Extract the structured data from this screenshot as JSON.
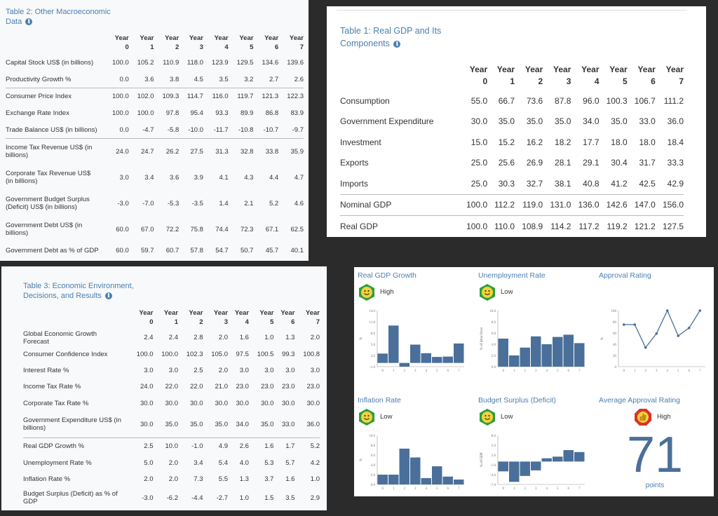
{
  "table2": {
    "title_line1": "Table 2: Other Macroeconomic",
    "title_line2": "Data",
    "info_icon": "ℹ",
    "year_word": "Year",
    "years": [
      "0",
      "1",
      "2",
      "3",
      "4",
      "5",
      "6",
      "7"
    ],
    "rows": [
      {
        "label": "Capital Stock US$ (in billions)",
        "values": [
          "100.0",
          "105.2",
          "110.9",
          "118.0",
          "123.9",
          "129.5",
          "134.6",
          "139.6"
        ]
      },
      {
        "label": "Productivity Growth %",
        "values": [
          "0.0",
          "3.6",
          "3.8",
          "4.5",
          "3.5",
          "3.2",
          "2.7",
          "2.6"
        ]
      },
      {
        "label": "Consumer Price Index",
        "values": [
          "100.0",
          "102.0",
          "109.3",
          "114.7",
          "116.0",
          "119.7",
          "121.3",
          "122.3"
        ]
      },
      {
        "label": "Exchange Rate Index",
        "values": [
          "100.0",
          "100.0",
          "97.8",
          "95.4",
          "93.3",
          "89.9",
          "86.8",
          "83.9"
        ]
      },
      {
        "label": "Trade Balance US$ (in billions)",
        "values": [
          "0.0",
          "-4.7",
          "-5.8",
          "-10.0",
          "-11.7",
          "-10.8",
          "-10.7",
          "-9.7"
        ]
      },
      {
        "label": "Income Tax Revenue US$ (in billions)",
        "values": [
          "24.0",
          "24.7",
          "26.2",
          "27.5",
          "31.3",
          "32.8",
          "33.8",
          "35.9"
        ]
      },
      {
        "label": "Corporate Tax Revenue US$ (in billions)",
        "values": [
          "3.0",
          "3.4",
          "3.6",
          "3.9",
          "4.1",
          "4.3",
          "4.4",
          "4.7"
        ]
      },
      {
        "label": "Government Budget Surplus (Deficit) US$ (in billions)",
        "values": [
          "-3.0",
          "-7.0",
          "-5.3",
          "-3.5",
          "1.4",
          "2.1",
          "5.2",
          "4.6"
        ]
      },
      {
        "label": "Government Debt US$ (in billions)",
        "values": [
          "60.0",
          "67.0",
          "72.2",
          "75.8",
          "74.4",
          "72.3",
          "67.1",
          "62.5"
        ]
      },
      {
        "label": "Government Debt as % of GDP",
        "values": [
          "60.0",
          "59.7",
          "60.7",
          "57.8",
          "54.7",
          "50.7",
          "45.7",
          "40.1"
        ]
      }
    ]
  },
  "table1": {
    "title_line1": "Table 1: Real GDP and Its",
    "title_line2": "Components",
    "info_icon": "ℹ",
    "year_word": "Year",
    "years": [
      "0",
      "1",
      "2",
      "3",
      "4",
      "5",
      "6",
      "7"
    ],
    "rows": [
      {
        "label": "Consumption",
        "values": [
          "55.0",
          "66.7",
          "73.6",
          "87.8",
          "96.0",
          "100.3",
          "106.7",
          "111.2"
        ]
      },
      {
        "label": "Government Expenditure",
        "values": [
          "30.0",
          "35.0",
          "35.0",
          "35.0",
          "34.0",
          "35.0",
          "33.0",
          "36.0"
        ]
      },
      {
        "label": "Investment",
        "values": [
          "15.0",
          "15.2",
          "16.2",
          "18.2",
          "17.7",
          "18.0",
          "18.0",
          "18.4"
        ]
      },
      {
        "label": "Exports",
        "values": [
          "25.0",
          "25.6",
          "26.9",
          "28.1",
          "29.1",
          "30.4",
          "31.7",
          "33.3"
        ]
      },
      {
        "label": "Imports",
        "values": [
          "25.0",
          "30.3",
          "32.7",
          "38.1",
          "40.8",
          "41.2",
          "42.5",
          "42.9"
        ]
      },
      {
        "label": "Nominal GDP",
        "values": [
          "100.0",
          "112.2",
          "119.0",
          "131.0",
          "136.0",
          "142.6",
          "147.0",
          "156.0"
        ]
      },
      {
        "label": "Real GDP",
        "values": [
          "100.0",
          "110.0",
          "108.9",
          "114.2",
          "117.2",
          "119.2",
          "121.2",
          "127.5"
        ]
      }
    ]
  },
  "table3": {
    "title_line1": "Table 3: Economic Environment,",
    "title_line2": "Decisions, and Results",
    "info_icon": "ℹ",
    "year_word": "Year",
    "years": [
      "0",
      "1",
      "2",
      "3",
      "4",
      "5",
      "6",
      "7"
    ],
    "rows": [
      {
        "label": "Global Economic Growth Forecast",
        "values": [
          "2.4",
          "2.4",
          "2.8",
          "2.0",
          "1.6",
          "1.0",
          "1.3",
          "2.0"
        ]
      },
      {
        "label": "Consumer Confidence Index",
        "values": [
          "100.0",
          "100.0",
          "102.3",
          "105.0",
          "97.5",
          "100.5",
          "99.3",
          "100.8"
        ]
      },
      {
        "label": "Interest Rate %",
        "values": [
          "3.0",
          "3.0",
          "2.5",
          "2.0",
          "3.0",
          "3.0",
          "3.0",
          "3.0"
        ]
      },
      {
        "label": "Income Tax Rate %",
        "values": [
          "24.0",
          "22.0",
          "22.0",
          "21.0",
          "23.0",
          "23.0",
          "23.0",
          "23.0"
        ]
      },
      {
        "label": "Corporate Tax Rate %",
        "values": [
          "30.0",
          "30.0",
          "30.0",
          "30.0",
          "30.0",
          "30.0",
          "30.0",
          "30.0"
        ]
      },
      {
        "label": "Government Expenditure US$ (in billions)",
        "values": [
          "30.0",
          "35.0",
          "35.0",
          "35.0",
          "34.0",
          "35.0",
          "33.0",
          "36.0"
        ]
      },
      {
        "label": "Real GDP Growth %",
        "values": [
          "2.5",
          "10.0",
          "-1.0",
          "4.9",
          "2.6",
          "1.6",
          "1.7",
          "5.2"
        ]
      },
      {
        "label": "Unemployment Rate %",
        "values": [
          "5.0",
          "2.0",
          "3.4",
          "5.4",
          "4.0",
          "5.3",
          "5.7",
          "4.2"
        ]
      },
      {
        "label": "Inflation Rate %",
        "values": [
          "2.0",
          "2.0",
          "7.3",
          "5.5",
          "1.3",
          "3.7",
          "1.6",
          "1.0"
        ]
      },
      {
        "label": "Budget Surplus (Deficit) as % of GDP",
        "values": [
          "-3.0",
          "-6.2",
          "-4.4",
          "-2.7",
          "1.0",
          "1.5",
          "3.5",
          "2.9"
        ]
      }
    ]
  },
  "dashboard": {
    "colors": {
      "bar": "#4a6f9a",
      "green": "#2e9e3e",
      "red": "#d9332b",
      "smiley": "#f5d23a",
      "title": "#4a7fb0",
      "bignum": "#4a6f9a"
    },
    "real_gdp": {
      "title": "Real GDP Growth",
      "status": "High",
      "icon": "smiley-icon",
      "ylabel": "%"
    },
    "unemployment": {
      "title": "Unemployment Rate",
      "status": "Low",
      "icon": "smiley-icon",
      "ylabel": "% of labor force"
    },
    "approval": {
      "title": "Approval Rating",
      "ylabel": "%"
    },
    "inflation": {
      "title": "Inflation Rate",
      "status": "Low",
      "icon": "smiley-icon",
      "ylabel": "%"
    },
    "budget": {
      "title": "Budget Surplus (Deficit)",
      "status": "Low",
      "icon": "smiley-icon",
      "ylabel": "% of GDP"
    },
    "avg_approval": {
      "title": "Average Approval Rating",
      "status": "High",
      "icon": "thumbs-up-icon",
      "value": "71",
      "unit": "points"
    }
  },
  "chart_data": [
    {
      "type": "bar",
      "x": [
        0,
        1,
        2,
        3,
        4,
        5,
        6,
        7
      ],
      "values": [
        2.5,
        10.0,
        -1.0,
        4.9,
        2.6,
        1.6,
        1.7,
        5.2
      ],
      "ylabel": "%",
      "ylim": [
        -1,
        14
      ],
      "yticks": [
        "-1.0",
        "2.0",
        "5.0",
        "8.0",
        "11.0",
        "14.0"
      ],
      "ytick_vals": [
        -1,
        2,
        5,
        8,
        11,
        14
      ]
    },
    {
      "type": "bar",
      "x": [
        0,
        1,
        2,
        3,
        4,
        5,
        6,
        7
      ],
      "values": [
        5.0,
        2.0,
        3.4,
        5.4,
        4.0,
        5.3,
        5.7,
        4.2
      ],
      "ylabel": "% of labor force",
      "ylim": [
        0,
        10
      ],
      "yticks": [
        "0.0",
        "2.0",
        "4.0",
        "6.0",
        "8.0",
        "10.0"
      ],
      "ytick_vals": [
        0,
        2,
        4,
        6,
        8,
        10
      ]
    },
    {
      "type": "line",
      "x": [
        0,
        1,
        2,
        3,
        4,
        5,
        6,
        7
      ],
      "values": [
        75,
        75,
        34,
        59,
        100,
        55,
        69,
        100
      ],
      "ylabel": "%",
      "ylim": [
        0,
        100
      ],
      "yticks": [
        "0",
        "20",
        "40",
        "60",
        "80",
        "100"
      ],
      "ytick_vals": [
        0,
        20,
        40,
        60,
        80,
        100
      ]
    },
    {
      "type": "bar",
      "x": [
        0,
        1,
        2,
        3,
        4,
        5,
        6,
        7
      ],
      "values": [
        2.0,
        2.0,
        7.3,
        5.5,
        1.3,
        3.7,
        1.6,
        1.0
      ],
      "ylabel": "%",
      "ylim": [
        0,
        10
      ],
      "yticks": [
        "0.0",
        "2.0",
        "4.0",
        "6.0",
        "8.0",
        "10.0"
      ],
      "ytick_vals": [
        0,
        2,
        4,
        6,
        8,
        10
      ]
    },
    {
      "type": "bar",
      "x": [
        0,
        1,
        2,
        3,
        4,
        5,
        6,
        7
      ],
      "values": [
        -3.0,
        -6.2,
        -4.4,
        -2.7,
        1.0,
        1.5,
        3.5,
        2.9
      ],
      "ylabel": "% of GDP",
      "ylim": [
        -7,
        8
      ],
      "yticks": [
        "-7.0",
        "-4.0",
        "-1.0",
        "2.0",
        "5.0",
        "8.0"
      ],
      "ytick_vals": [
        -7,
        -4,
        -1,
        2,
        5,
        8
      ]
    }
  ]
}
